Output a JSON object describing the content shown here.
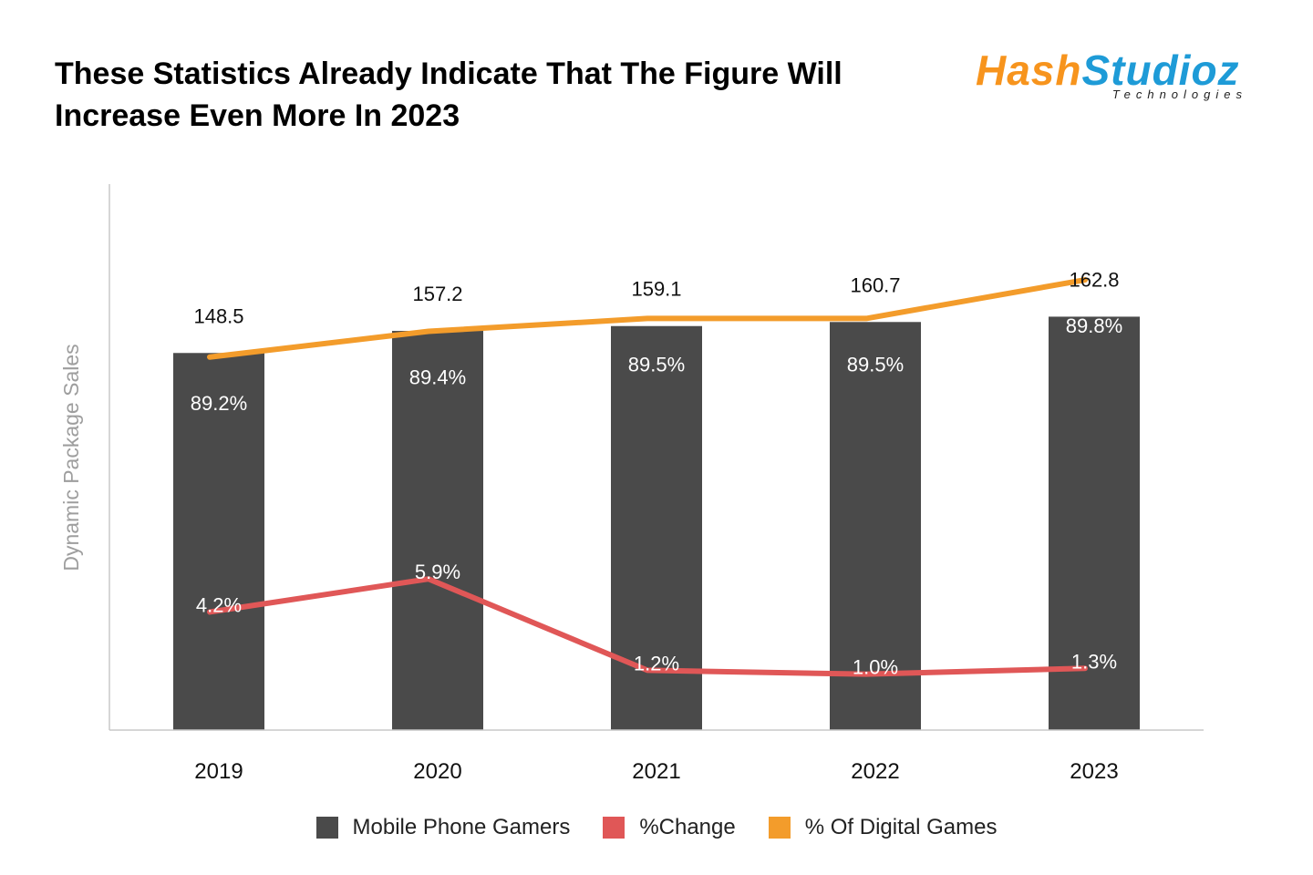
{
  "header": {
    "title": "These Statistics Already Indicate That The Figure Will Increase Even More In 2023"
  },
  "logo": {
    "brand_part1": "Hash",
    "brand_part2": "Studioz",
    "subtitle": "Technologies"
  },
  "colors": {
    "bar": "#4a4a4a",
    "change_line": "#e05757",
    "digital_line": "#f39c2b",
    "axis": "#c8c8c8",
    "ylabel": "#9e9e9e"
  },
  "chart_data": {
    "type": "bar",
    "title": "These Statistics Already Indicate That The Figure Will Increase Even More In 2023",
    "xlabel": "",
    "ylabel": "Dynamic Package Sales",
    "categories": [
      "2019",
      "2020",
      "2021",
      "2022",
      "2023"
    ],
    "series": [
      {
        "name": "Mobile Phone Gamers",
        "type": "bar",
        "values": [
          148.5,
          157.2,
          159.1,
          160.7,
          162.8
        ],
        "labels": [
          "148.5",
          "157.2",
          "159.1",
          "160.7",
          "162.8"
        ]
      },
      {
        "name": "%Change",
        "type": "line",
        "values": [
          4.2,
          5.9,
          1.2,
          1.0,
          1.3
        ],
        "labels": [
          "4.2%",
          "5.9%",
          "1.2%",
          "1.0%",
          "1.3%"
        ]
      },
      {
        "name": "% Of Digital Games",
        "type": "line",
        "values": [
          89.2,
          89.4,
          89.5,
          89.5,
          89.8
        ],
        "labels": [
          "89.2%",
          "89.4%",
          "89.5%",
          "89.5%",
          "89.8%"
        ]
      }
    ],
    "ylim": [
      0,
      215
    ],
    "grid": false,
    "legend_position": "bottom"
  },
  "legend": {
    "items": [
      {
        "label": "Mobile Phone Gamers"
      },
      {
        "label": "%Change"
      },
      {
        "label": "% Of Digital Games"
      }
    ]
  }
}
